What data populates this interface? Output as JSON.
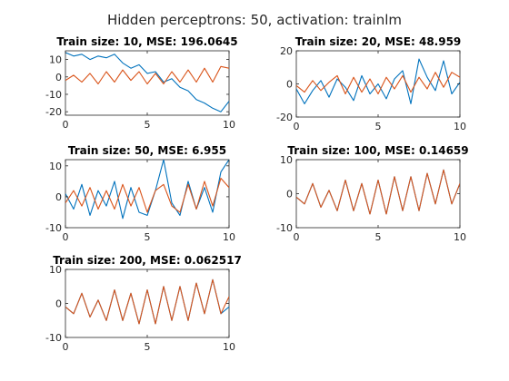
{
  "figure": {
    "suptitle": "Hidden perceptrons: 50, activation: trainlm"
  },
  "colors": {
    "series_1": "#0072BD",
    "series_2": "#D95319",
    "axis": "#262626"
  },
  "chart_data": [
    {
      "type": "line",
      "title": "Train size: 10, MSE: 196.0645",
      "xlim": [
        0,
        10
      ],
      "ylim": [
        -22,
        15
      ],
      "xticks": [
        0,
        5,
        10
      ],
      "yticks": [
        -20,
        -10,
        0,
        10
      ],
      "xlabel": "",
      "ylabel": "",
      "grid": false,
      "series": [
        {
          "color": "#0072BD",
          "x": [
            0,
            0.5,
            1,
            1.5,
            2,
            2.5,
            3,
            3.5,
            4,
            4.5,
            5,
            5.5,
            6,
            6.5,
            7,
            7.5,
            8,
            8.5,
            9,
            9.5,
            10
          ],
          "y": [
            14,
            12,
            13,
            10,
            12,
            11,
            13,
            8,
            5,
            7,
            2,
            3,
            -3,
            -1,
            -6,
            -8,
            -13,
            -15,
            -18,
            -20,
            -14
          ]
        },
        {
          "color": "#D95319",
          "x": [
            0,
            0.5,
            1,
            1.5,
            2,
            2.5,
            3,
            3.5,
            4,
            4.5,
            5,
            5.5,
            6,
            6.5,
            7,
            7.5,
            8,
            8.5,
            9,
            9.5,
            10
          ],
          "y": [
            -2,
            1,
            -3,
            2,
            -4,
            3,
            -3,
            4,
            -2,
            3,
            -4,
            2,
            -4,
            3,
            -3,
            4,
            -3,
            5,
            -3,
            6,
            5
          ]
        }
      ]
    },
    {
      "type": "line",
      "title": "Train size: 20, MSE: 48.959",
      "xlim": [
        0,
        10
      ],
      "ylim": [
        -20,
        20
      ],
      "xticks": [
        0,
        5,
        10
      ],
      "yticks": [
        -20,
        0,
        20
      ],
      "xlabel": "",
      "ylabel": "",
      "grid": false,
      "series": [
        {
          "color": "#0072BD",
          "x": [
            0,
            0.5,
            1,
            1.5,
            2,
            2.5,
            3,
            3.5,
            4,
            4.5,
            5,
            5.5,
            6,
            6.5,
            7,
            7.5,
            8,
            8.5,
            9,
            9.5,
            10
          ],
          "y": [
            -3,
            -12,
            -4,
            2,
            -8,
            3,
            -2,
            -10,
            5,
            -6,
            0,
            -9,
            3,
            8,
            -12,
            15,
            4,
            -4,
            14,
            -6,
            1
          ]
        },
        {
          "color": "#D95319",
          "x": [
            0,
            0.5,
            1,
            1.5,
            2,
            2.5,
            3,
            3.5,
            4,
            4.5,
            5,
            5.5,
            6,
            6.5,
            7,
            7.5,
            8,
            8.5,
            9,
            9.5,
            10
          ],
          "y": [
            -1,
            -5,
            2,
            -4,
            1,
            5,
            -6,
            4,
            -5,
            3,
            -6,
            4,
            -3,
            5,
            -5,
            4,
            -3,
            7,
            -2,
            7,
            4
          ]
        }
      ]
    },
    {
      "type": "line",
      "title": "Train size: 50, MSE: 6.955",
      "xlim": [
        0,
        10
      ],
      "ylim": [
        -10,
        12
      ],
      "xticks": [
        0,
        5,
        10
      ],
      "yticks": [
        -10,
        0,
        10
      ],
      "xlabel": "",
      "ylabel": "",
      "grid": false,
      "series": [
        {
          "color": "#0072BD",
          "x": [
            0,
            0.5,
            1,
            1.5,
            2,
            2.5,
            3,
            3.5,
            4,
            4.5,
            5,
            5.5,
            6,
            6.5,
            7,
            7.5,
            8,
            8.5,
            9,
            9.5,
            10
          ],
          "y": [
            1,
            -4,
            4,
            -6,
            2,
            -3,
            5,
            -7,
            3,
            -5,
            -6,
            2,
            12,
            -2,
            -6,
            5,
            -4,
            3,
            -5,
            8,
            12
          ]
        },
        {
          "color": "#D95319",
          "x": [
            0,
            0.5,
            1,
            1.5,
            2,
            2.5,
            3,
            3.5,
            4,
            4.5,
            5,
            5.5,
            6,
            6.5,
            7,
            7.5,
            8,
            8.5,
            9,
            9.5,
            10
          ],
          "y": [
            -2,
            2,
            -3,
            3,
            -4,
            2,
            -4,
            4,
            -3,
            3,
            -5,
            2,
            4,
            -3,
            -5,
            4,
            -4,
            5,
            -3,
            6,
            3
          ]
        }
      ]
    },
    {
      "type": "line",
      "title": "Train size: 100, MSE: 0.14659",
      "xlim": [
        0,
        10
      ],
      "ylim": [
        -10,
        10
      ],
      "xticks": [
        0,
        5,
        10
      ],
      "yticks": [
        -10,
        0,
        10
      ],
      "xlabel": "",
      "ylabel": "",
      "grid": false,
      "series": [
        {
          "color": "#0072BD",
          "x": [
            0,
            0.5,
            1,
            1.5,
            2,
            2.5,
            3,
            3.5,
            4,
            4.5,
            5,
            5.5,
            6,
            6.5,
            7,
            7.5,
            8,
            8.5,
            9,
            9.5,
            10
          ],
          "y": [
            -1,
            -3,
            3,
            -4,
            1,
            -5,
            4,
            -5,
            3,
            -6,
            4,
            -6,
            5,
            -5,
            5,
            -5,
            6,
            -3,
            7,
            -3,
            3
          ]
        },
        {
          "color": "#D95319",
          "x": [
            0,
            0.5,
            1,
            1.5,
            2,
            2.5,
            3,
            3.5,
            4,
            4.5,
            5,
            5.5,
            6,
            6.5,
            7,
            7.5,
            8,
            8.5,
            9,
            9.5,
            10
          ],
          "y": [
            -1,
            -3,
            3,
            -4,
            1,
            -5,
            4,
            -5,
            3,
            -6,
            4,
            -6,
            5,
            -5,
            5,
            -5,
            6,
            -3,
            7,
            -3,
            3
          ]
        }
      ]
    },
    {
      "type": "line",
      "title": "Train size: 200, MSE: 0.062517",
      "xlim": [
        0,
        10
      ],
      "ylim": [
        -10,
        10
      ],
      "xticks": [
        0,
        5,
        10
      ],
      "yticks": [
        -10,
        0,
        10
      ],
      "xlabel": "",
      "ylabel": "",
      "grid": false,
      "series": [
        {
          "color": "#0072BD",
          "x": [
            0,
            0.5,
            1,
            1.5,
            2,
            2.5,
            3,
            3.5,
            4,
            4.5,
            5,
            5.5,
            6,
            6.5,
            7,
            7.5,
            8,
            8.5,
            9,
            9.5,
            10
          ],
          "y": [
            -1,
            -3,
            3,
            -4,
            1,
            -5,
            4,
            -5,
            3,
            -6,
            4,
            -6,
            5,
            -5,
            5,
            -5,
            6,
            -3,
            7,
            -3,
            -1
          ]
        },
        {
          "color": "#D95319",
          "x": [
            0,
            0.5,
            1,
            1.5,
            2,
            2.5,
            3,
            3.5,
            4,
            4.5,
            5,
            5.5,
            6,
            6.5,
            7,
            7.5,
            8,
            8.5,
            9,
            9.5,
            10
          ],
          "y": [
            -1,
            -3,
            3,
            -4,
            1,
            -5,
            4,
            -5,
            3,
            -6,
            4,
            -6,
            5,
            -5,
            5,
            -5,
            6,
            -3,
            7,
            -3,
            2
          ]
        }
      ]
    }
  ]
}
